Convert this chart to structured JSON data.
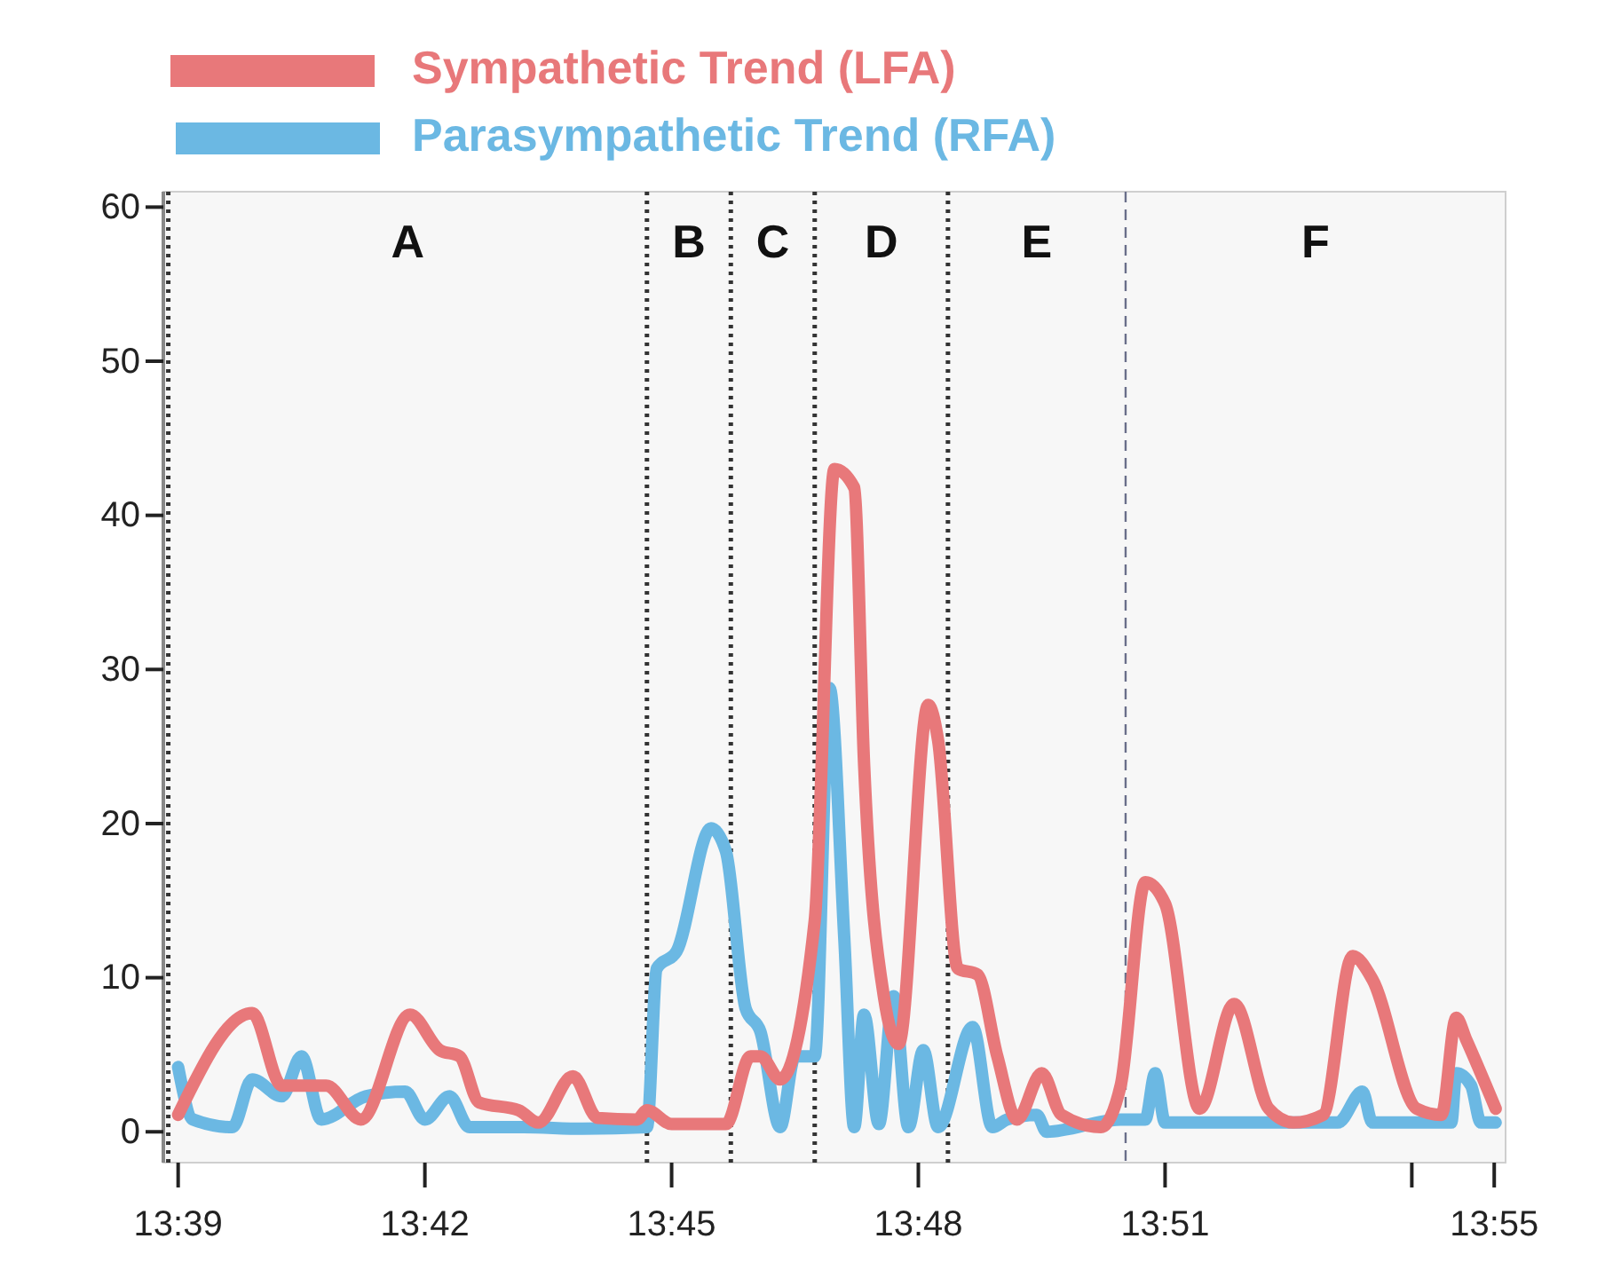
{
  "chart_data": {
    "type": "line",
    "xlim": [
      13.647,
      13.919
    ],
    "ylim": [
      -2,
      61
    ],
    "xticks": [
      {
        "value": 13.65,
        "label": "13:39"
      },
      {
        "value": 13.7,
        "label": "13:42"
      },
      {
        "value": 13.75,
        "label": "13:45"
      },
      {
        "value": 13.8,
        "label": "13:48"
      },
      {
        "value": 13.85,
        "label": "13:51"
      },
      {
        "value": 13.9,
        "label": null
      },
      {
        "value": 13.9167,
        "label": "13:55"
      }
    ],
    "yticks": [
      0,
      10,
      20,
      30,
      40,
      50,
      60
    ],
    "grid": false,
    "legend": "top",
    "marker": "none",
    "line_style": "solid",
    "series": [
      {
        "name": "Parasympathetic Trend (RFA)",
        "color": "#6bb8e3",
        "x": [
          13.65,
          13.653,
          13.661,
          13.665,
          13.671,
          13.675,
          13.679,
          13.688,
          13.696,
          13.7,
          13.705,
          13.709,
          13.72,
          13.732,
          13.745,
          13.747,
          13.751,
          13.758,
          13.761,
          13.765,
          13.768,
          13.772,
          13.775,
          13.779,
          13.782,
          13.785,
          13.787,
          13.789,
          13.792,
          13.795,
          13.798,
          13.801,
          13.804,
          13.811,
          13.815,
          13.818,
          13.824,
          13.826,
          13.841,
          13.846,
          13.848,
          13.85,
          13.885,
          13.89,
          13.892,
          13.908,
          13.909,
          13.912,
          13.914,
          13.917
        ],
        "values": [
          4.2,
          0.8,
          0.3,
          3.4,
          2.3,
          4.9,
          0.8,
          2.3,
          2.6,
          0.8,
          2.3,
          0.3,
          0.3,
          0.2,
          0.3,
          10.6,
          11.7,
          19.7,
          18.2,
          8,
          6.5,
          0.3,
          4.9,
          4.9,
          28.8,
          12.5,
          0.3,
          7.6,
          0.5,
          8.8,
          0.3,
          5.3,
          0.3,
          6.8,
          0.3,
          0.8,
          1.1,
          0,
          0.8,
          0.8,
          3.8,
          0.6,
          0.6,
          2.6,
          0.6,
          0.6,
          3.8,
          3,
          0.6,
          0.6
        ]
      },
      {
        "name": "Sympathetic Trend (LFA)",
        "color": "#e8787a",
        "x": [
          13.65,
          13.665,
          13.671,
          13.68,
          13.687,
          13.697,
          13.703,
          13.707,
          13.711,
          13.719,
          13.723,
          13.73,
          13.735,
          13.743,
          13.745,
          13.75,
          13.761,
          13.766,
          13.768,
          13.772,
          13.779,
          13.783,
          13.787,
          13.789,
          13.793,
          13.796,
          13.802,
          13.804,
          13.808,
          13.812,
          13.816,
          13.82,
          13.825,
          13.829,
          13.837,
          13.841,
          13.846,
          13.85,
          13.857,
          13.864,
          13.871,
          13.876,
          13.882,
          13.888,
          13.892,
          13.901,
          13.906,
          13.909,
          13.911,
          13.917
        ],
        "values": [
          1.1,
          7.7,
          3,
          3,
          0.8,
          7.6,
          5.3,
          4.9,
          1.9,
          1.4,
          0.6,
          3.6,
          0.9,
          0.8,
          1.4,
          0.5,
          0.5,
          4.9,
          4.9,
          3.4,
          13.7,
          43,
          41.8,
          23.9,
          8.8,
          5.7,
          27.7,
          25.4,
          10.6,
          10.2,
          4.9,
          0.8,
          3.8,
          1.1,
          0.3,
          3,
          16.2,
          14.8,
          1.5,
          8.3,
          1.5,
          0.6,
          1.1,
          11.4,
          9.9,
          1.5,
          1.1,
          7.4,
          6,
          1.5
        ]
      }
    ],
    "ref_lines": [
      {
        "axis": "x",
        "value": 13.648,
        "color": "#333333",
        "line_style": "dotted"
      },
      {
        "axis": "x",
        "value": 13.745,
        "color": "#333333",
        "line_style": "dotted"
      },
      {
        "axis": "x",
        "value": 13.762,
        "color": "#333333",
        "line_style": "dotted"
      },
      {
        "axis": "x",
        "value": 13.779,
        "color": "#333333",
        "line_style": "dotted"
      },
      {
        "axis": "x",
        "value": 13.806,
        "color": "#333333",
        "line_style": "dotted"
      },
      {
        "axis": "x",
        "value": 13.842,
        "color": "#6a6f8a",
        "line_style": "dashed"
      }
    ],
    "annotations": [
      "A",
      "B",
      "C",
      "D",
      "E",
      "F"
    ]
  }
}
